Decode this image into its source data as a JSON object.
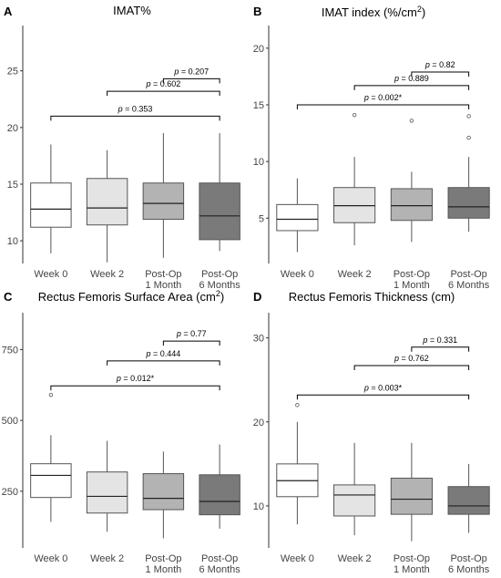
{
  "chart_data": [
    {
      "type": "box",
      "panel": "A",
      "title": "IMAT%",
      "categories": [
        "Week 0",
        "Week 2",
        "Post-Op\n1 Month",
        "Post-Op\n6 Months"
      ],
      "ylim": [
        8,
        29
      ],
      "yticks": [
        10,
        15,
        20,
        25
      ],
      "fills": [
        "#ffffff",
        "#e4e4e4",
        "#b3b3b3",
        "#7a7a7a"
      ],
      "boxes": [
        {
          "q1": 11.2,
          "median": 12.8,
          "q3": 15.1,
          "whisker_low": 8.9,
          "whisker_high": 18.5,
          "outliers": []
        },
        {
          "q1": 11.4,
          "median": 12.9,
          "q3": 15.5,
          "whisker_low": 8.1,
          "whisker_high": 18.0,
          "outliers": []
        },
        {
          "q1": 11.9,
          "median": 13.3,
          "q3": 15.1,
          "whisker_low": 8.5,
          "whisker_high": 19.5,
          "outliers": []
        },
        {
          "q1": 10.1,
          "median": 12.2,
          "q3": 15.1,
          "whisker_low": 9.1,
          "whisker_high": 19.5,
          "outliers": []
        }
      ],
      "comparisons": [
        {
          "from": 0,
          "to": 3,
          "p": "0.353",
          "y": 21.0
        },
        {
          "from": 1,
          "to": 3,
          "p": "0.602",
          "y": 23.2
        },
        {
          "from": 2,
          "to": 3,
          "p": "0.207",
          "y": 24.3
        }
      ]
    },
    {
      "type": "box",
      "panel": "B",
      "title": "IMAT index (%/cm",
      "title_sup": "2",
      "title_end": ")",
      "categories": [
        "Week 0",
        "Week 2",
        "Post-Op\n1 Month",
        "Post-Op\n6 Months"
      ],
      "ylim": [
        1,
        22
      ],
      "yticks": [
        5,
        10,
        15,
        20
      ],
      "fills": [
        "#ffffff",
        "#e4e4e4",
        "#b3b3b3",
        "#7a7a7a"
      ],
      "boxes": [
        {
          "q1": 3.9,
          "median": 4.9,
          "q3": 6.2,
          "whisker_low": 2.0,
          "whisker_high": 8.5,
          "outliers": []
        },
        {
          "q1": 4.6,
          "median": 6.1,
          "q3": 7.7,
          "whisker_low": 2.6,
          "whisker_high": 10.4,
          "outliers": [
            14.1
          ]
        },
        {
          "q1": 4.8,
          "median": 6.1,
          "q3": 7.6,
          "whisker_low": 2.9,
          "whisker_high": 9.1,
          "outliers": [
            13.6
          ]
        },
        {
          "q1": 5.0,
          "median": 6.0,
          "q3": 7.7,
          "whisker_low": 3.8,
          "whisker_high": 10.4,
          "outliers": [
            12.1,
            14.0
          ]
        }
      ],
      "comparisons": [
        {
          "from": 0,
          "to": 3,
          "p": "0.002*",
          "y": 15.0
        },
        {
          "from": 1,
          "to": 3,
          "p": "0.889",
          "y": 16.7
        },
        {
          "from": 2,
          "to": 3,
          "p": "0.82",
          "y": 17.9
        }
      ]
    },
    {
      "type": "box",
      "panel": "C",
      "title": "Rectus Femoris Surface Area (cm",
      "title_sup": "2",
      "title_end": ")",
      "categories": [
        "Week 0",
        "Week 2",
        "Post-Op\n1 Month",
        "Post-Op\n6 Months"
      ],
      "ylim": [
        50,
        880
      ],
      "yticks": [
        250,
        500,
        750
      ],
      "fills": [
        "#ffffff",
        "#e4e4e4",
        "#b3b3b3",
        "#7a7a7a"
      ],
      "boxes": [
        {
          "q1": 228,
          "median": 306,
          "q3": 347,
          "whisker_low": 142,
          "whisker_high": 448,
          "outliers": [
            590
          ]
        },
        {
          "q1": 173,
          "median": 232,
          "q3": 318,
          "whisker_low": 107,
          "whisker_high": 428,
          "outliers": []
        },
        {
          "q1": 185,
          "median": 225,
          "q3": 312,
          "whisker_low": 84,
          "whisker_high": 390,
          "outliers": []
        },
        {
          "q1": 167,
          "median": 214,
          "q3": 308,
          "whisker_low": 118,
          "whisker_high": 415,
          "outliers": []
        }
      ],
      "comparisons": [
        {
          "from": 0,
          "to": 3,
          "p": "0.012*",
          "y": 622
        },
        {
          "from": 1,
          "to": 3,
          "p": "0.444",
          "y": 710
        },
        {
          "from": 2,
          "to": 3,
          "p": "0.77",
          "y": 780
        }
      ]
    },
    {
      "type": "box",
      "panel": "D",
      "title": "Rectus Femoris Thickness (cm)",
      "title_sup": "",
      "title_end": "",
      "categories": [
        "Week 0",
        "Week 2",
        "Post-Op\n1 Month",
        "Post-Op\n6 Months"
      ],
      "ylim": [
        5,
        33
      ],
      "yticks": [
        10,
        20,
        30
      ],
      "fills": [
        "#ffffff",
        "#e4e4e4",
        "#b3b3b3",
        "#7a7a7a"
      ],
      "boxes": [
        {
          "q1": 11.1,
          "median": 13.0,
          "q3": 15.0,
          "whisker_low": 7.8,
          "whisker_high": 20.0,
          "outliers": [
            22.0
          ]
        },
        {
          "q1": 8.8,
          "median": 11.3,
          "q3": 12.5,
          "whisker_low": 6.5,
          "whisker_high": 17.5,
          "outliers": []
        },
        {
          "q1": 9.0,
          "median": 10.8,
          "q3": 13.3,
          "whisker_low": 5.8,
          "whisker_high": 17.5,
          "outliers": []
        },
        {
          "q1": 9.0,
          "median": 10.0,
          "q3": 12.3,
          "whisker_low": 6.8,
          "whisker_high": 15.0,
          "outliers": []
        }
      ],
      "comparisons": [
        {
          "from": 0,
          "to": 3,
          "p": "0.003*",
          "y": 23.2
        },
        {
          "from": 1,
          "to": 3,
          "p": "0.762",
          "y": 26.7
        },
        {
          "from": 2,
          "to": 3,
          "p": "0.331",
          "y": 28.9
        }
      ]
    }
  ]
}
